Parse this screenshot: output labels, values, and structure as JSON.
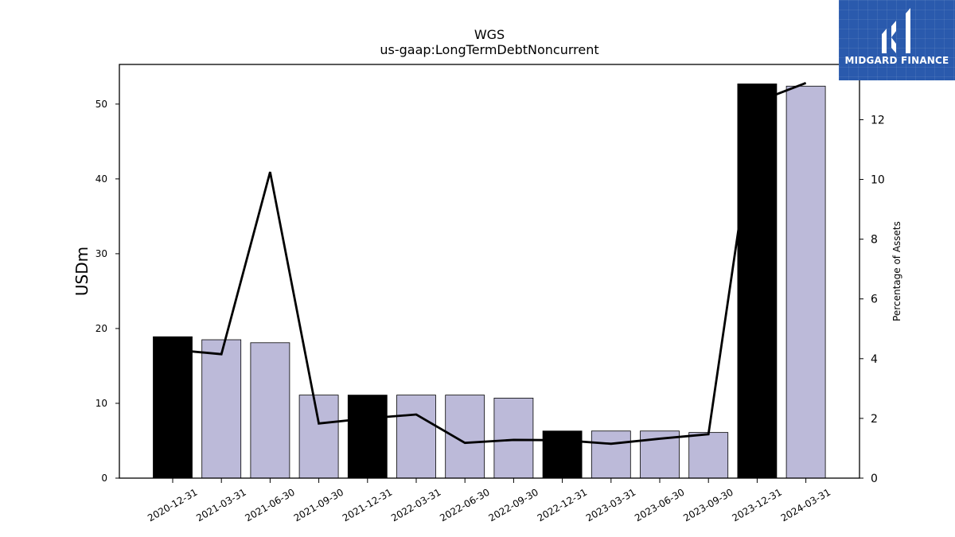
{
  "chart_data": {
    "type": "bar",
    "title": "WGS",
    "subtitle": "us-gaap:LongTermDebtNoncurrent",
    "ylabel": "USDm",
    "y2label": "Percentage of Assets",
    "ylim": [
      0,
      55.3
    ],
    "y2lim": [
      0,
      13.85
    ],
    "yticks": [
      0,
      10,
      20,
      30,
      40,
      50
    ],
    "y2ticks": [
      0,
      2,
      4,
      6,
      8,
      10,
      12
    ],
    "categories": [
      "2020-12-31",
      "2021-03-31",
      "2021-06-30",
      "2021-09-30",
      "2021-12-31",
      "2022-03-31",
      "2022-06-30",
      "2022-09-30",
      "2022-12-31",
      "2023-03-31",
      "2023-06-30",
      "2023-09-30",
      "2023-12-31",
      "2024-03-31"
    ],
    "series": [
      {
        "kind": "bar",
        "axis": "left",
        "values": [
          18.9,
          18.5,
          18.1,
          11.1,
          11.1,
          11.1,
          11.1,
          10.7,
          6.3,
          6.3,
          6.3,
          6.1,
          52.7,
          52.4
        ],
        "colors": [
          "#000000",
          "#bcbad9",
          "#bcbad9",
          "#bcbad9",
          "#000000",
          "#bcbad9",
          "#bcbad9",
          "#bcbad9",
          "#000000",
          "#bcbad9",
          "#bcbad9",
          "#bcbad9",
          "#000000",
          "#bcbad9"
        ]
      },
      {
        "kind": "line",
        "axis": "right",
        "color": "#000000",
        "values": [
          4.3,
          4.15,
          10.25,
          1.83,
          2.0,
          2.13,
          1.18,
          1.28,
          1.27,
          1.15,
          1.32,
          1.47,
          12.6,
          13.23
        ]
      }
    ]
  },
  "logo": {
    "text": "MIDGARD FINANCE",
    "background": "#2a5aad"
  }
}
